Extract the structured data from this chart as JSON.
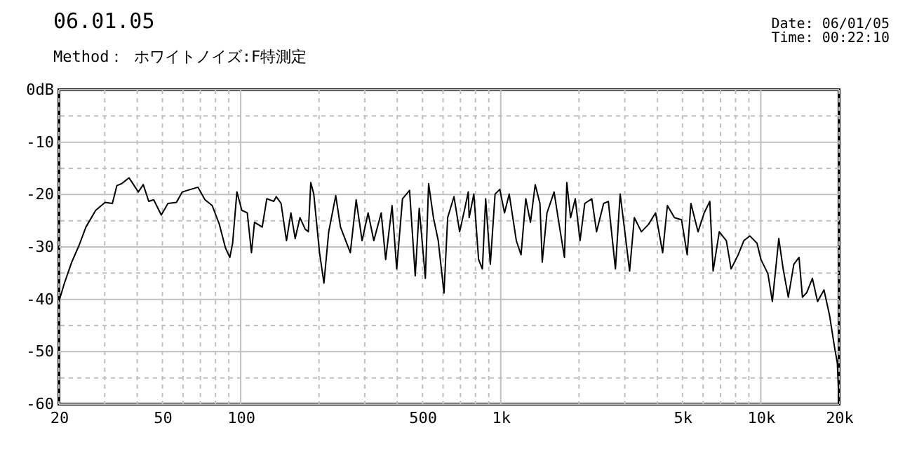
{
  "chart_data": {
    "type": "line",
    "title": "06.01.05",
    "subtitle": "Method： ホワイトノイズ:F特測定",
    "annotations": [
      "Date: 06/01/05",
      "Time: 00:22:10"
    ],
    "log": "x",
    "grid": true,
    "xlim": [
      20,
      20000
    ],
    "ylim": [
      -60,
      0
    ],
    "xticks": [
      20,
      {
        "value": 30,
        "label": null
      },
      {
        "value": 40,
        "label": null
      },
      50,
      {
        "value": 60,
        "label": null
      },
      {
        "value": 70,
        "label": null
      },
      {
        "value": 80,
        "label": null
      },
      {
        "value": 90,
        "label": null
      },
      100,
      {
        "value": 200,
        "label": null
      },
      {
        "value": 300,
        "label": null
      },
      {
        "value": 400,
        "label": null
      },
      500,
      {
        "value": 600,
        "label": null
      },
      {
        "value": 700,
        "label": null
      },
      {
        "value": 800,
        "label": null
      },
      {
        "value": 900,
        "label": null
      },
      {
        "value": 1000,
        "label": "1k"
      },
      {
        "value": 2000,
        "label": null
      },
      {
        "value": 3000,
        "label": null
      },
      {
        "value": 4000,
        "label": null
      },
      {
        "value": 5000,
        "label": "5k"
      },
      {
        "value": 6000,
        "label": null
      },
      {
        "value": 7000,
        "label": null
      },
      {
        "value": 8000,
        "label": null
      },
      {
        "value": 9000,
        "label": null
      },
      {
        "value": 10000,
        "label": "10k"
      },
      {
        "value": 20000,
        "label": "20k"
      }
    ],
    "yticks": [
      {
        "value": 0,
        "label": "0dB"
      },
      {
        "value": -5,
        "label": null
      },
      -10,
      {
        "value": -15,
        "label": null
      },
      -20,
      {
        "value": -25,
        "label": null
      },
      -30,
      {
        "value": -35,
        "label": null
      },
      -40,
      {
        "value": -45,
        "label": null
      },
      -50,
      {
        "value": -55,
        "label": null
      },
      -60
    ],
    "series": [
      {
        "color": "#000000",
        "line_style": "solid",
        "marker": "none",
        "x": [
          20,
          21,
          22.4,
          23.9,
          25.4,
          27.7,
          30.1,
          32.1,
          33.4,
          34.9,
          37.2,
          40.4,
          42.2,
          44.3,
          46.3,
          49.5,
          52.5,
          56.6,
          59.6,
          64.3,
          68.5,
          72.9,
          77.7,
          82.8,
          87.4,
          90.8,
          93.1,
          96.7,
          101,
          106,
          110,
          113,
          121,
          126,
          134,
          137,
          143,
          150,
          156,
          162,
          169,
          177,
          182,
          186,
          191,
          201,
          209,
          218,
          232,
          242,
          264,
          278,
          293,
          309,
          325,
          347,
          361,
          382,
          398,
          419,
          446,
          469,
          486,
          513,
          528,
          551,
          575,
          605,
          625,
          661,
          695,
          725,
          750,
          756,
          788,
          822,
          850,
          875,
          912,
          951,
          992,
          1034,
          1078,
          1148,
          1197,
          1248,
          1301,
          1357,
          1415,
          1444,
          1506,
          1604,
          1672,
          1758,
          1795,
          1856,
          1935,
          2018,
          2104,
          2240,
          2336,
          2487,
          2593,
          2761,
          2879,
          3001,
          3130,
          3264,
          3474,
          3700,
          3939,
          4194,
          4373,
          4656,
          4957,
          5212,
          5387,
          5737,
          6058,
          6368,
          6557,
          6924,
          7372,
          7687,
          8185,
          8606,
          9084,
          9672,
          10015,
          10650,
          11080,
          11730,
          12190,
          12760,
          13400,
          14030,
          14460,
          15030,
          15790,
          16530,
          17500,
          18390,
          19250,
          19690,
          20000
        ],
        "values": [
          -40.4,
          -36.9,
          -32.9,
          -29.7,
          -26.2,
          -23.0,
          -21.5,
          -21.7,
          -18.3,
          -17.9,
          -16.8,
          -19.5,
          -18.1,
          -21.3,
          -21.0,
          -23.9,
          -21.7,
          -21.5,
          -19.5,
          -19.0,
          -18.6,
          -21.0,
          -22.1,
          -25.7,
          -30.2,
          -32.0,
          -29.3,
          -19.5,
          -23.0,
          -23.5,
          -31.1,
          -25.3,
          -26.2,
          -20.8,
          -21.3,
          -20.4,
          -21.7,
          -28.8,
          -23.5,
          -28.4,
          -24.4,
          -26.6,
          -27.1,
          -17.7,
          -19.9,
          -31.1,
          -36.9,
          -27.1,
          -20.2,
          -26.2,
          -31.1,
          -21.0,
          -28.8,
          -23.5,
          -28.8,
          -23.5,
          -32.4,
          -22.1,
          -34.2,
          -20.8,
          -19.2,
          -35.5,
          -22.6,
          -36.0,
          -17.9,
          -24.4,
          -28.8,
          -38.8,
          -24.4,
          -20.4,
          -27.1,
          -23.0,
          -19.5,
          -24.4,
          -19.9,
          -32.4,
          -34.2,
          -20.8,
          -33.3,
          -19.9,
          -19.0,
          -23.5,
          -19.9,
          -28.8,
          -31.5,
          -20.8,
          -25.3,
          -18.1,
          -21.7,
          -32.9,
          -23.5,
          -19.5,
          -25.3,
          -32.0,
          -17.7,
          -24.4,
          -20.8,
          -28.8,
          -21.7,
          -20.8,
          -27.1,
          -21.7,
          -21.3,
          -34.2,
          -19.9,
          -27.1,
          -34.6,
          -24.4,
          -27.1,
          -25.7,
          -23.5,
          -31.1,
          -22.1,
          -24.4,
          -24.8,
          -31.5,
          -21.7,
          -27.1,
          -23.5,
          -21.3,
          -34.6,
          -27.1,
          -28.8,
          -34.2,
          -31.5,
          -28.8,
          -27.9,
          -29.3,
          -32.4,
          -35.1,
          -40.4,
          -28.4,
          -34.2,
          -39.6,
          -33.3,
          -32.0,
          -39.6,
          -38.7,
          -36.0,
          -40.4,
          -38.2,
          -43.1,
          -49.4,
          -52.1,
          -60.0
        ]
      }
    ]
  }
}
